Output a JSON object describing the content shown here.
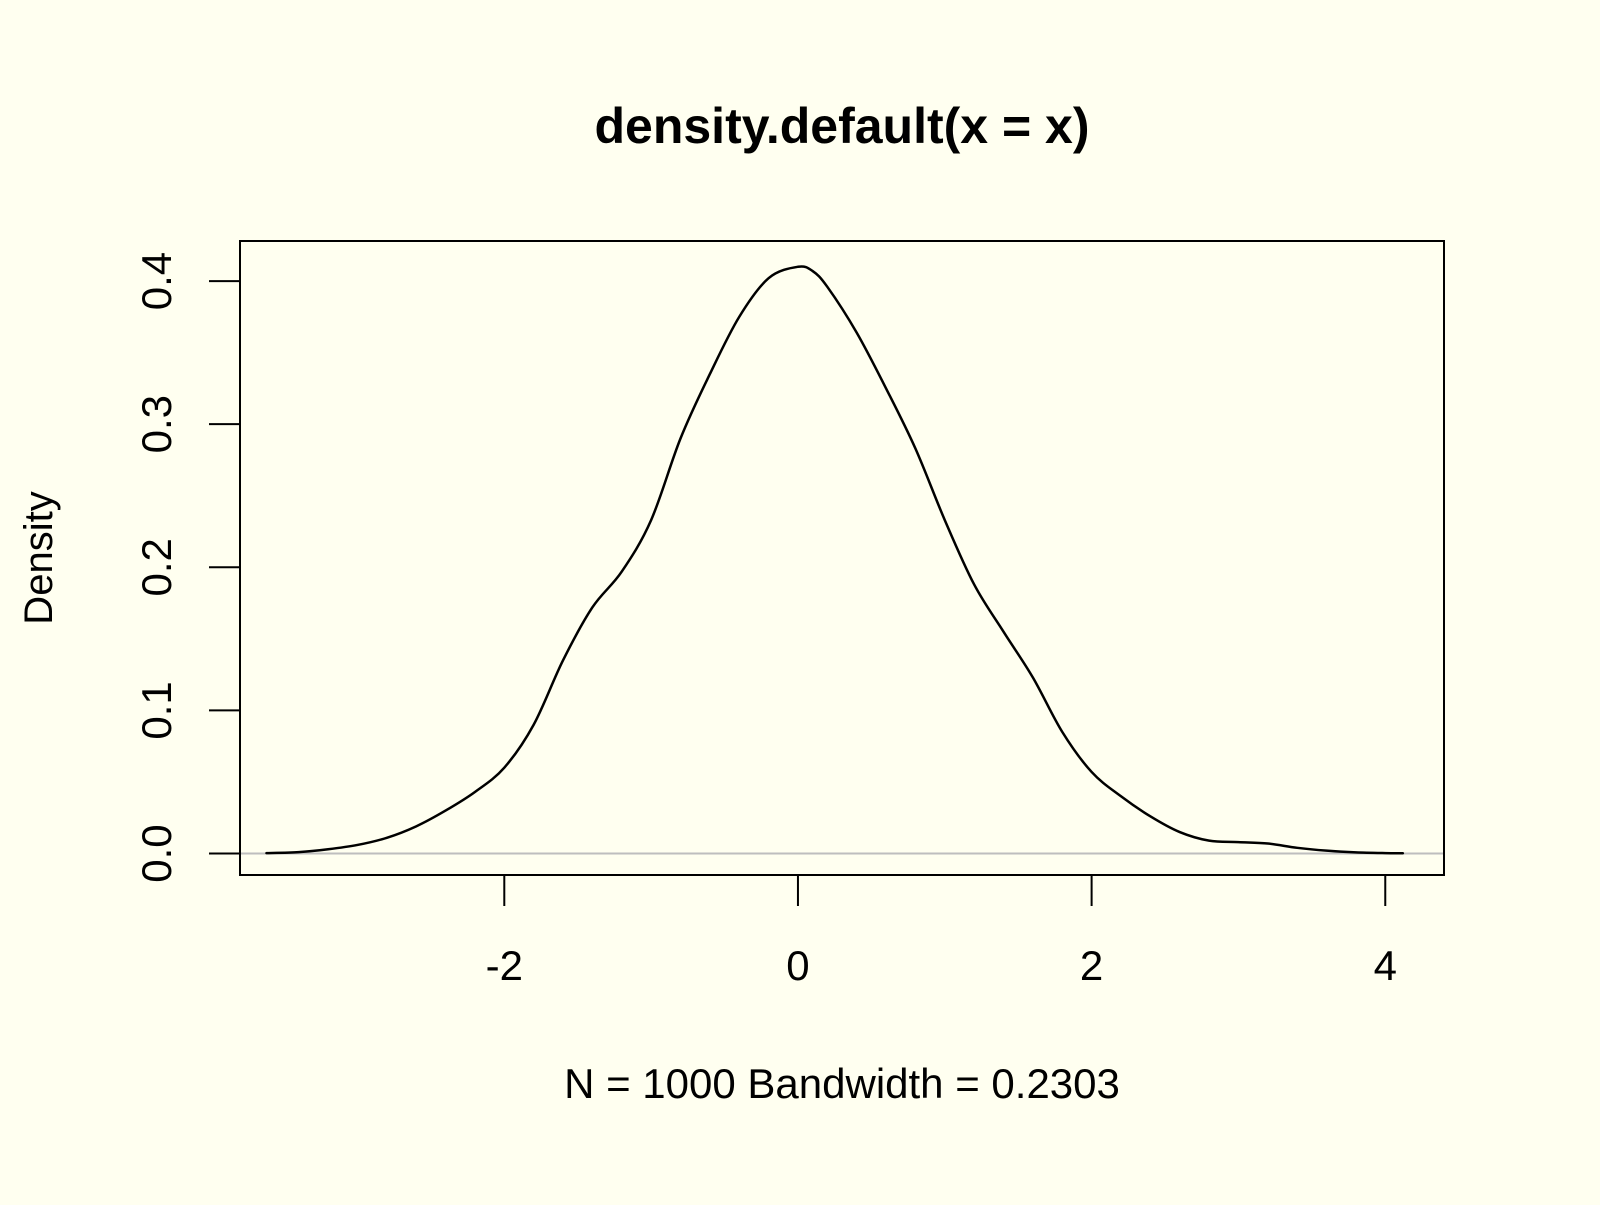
{
  "chart_data": {
    "type": "line",
    "title": "density.default(x = x)",
    "xlabel": "N = 1000   Bandwidth = 0.2303",
    "ylabel": "Density",
    "xlim": [
      -3.8,
      4.4
    ],
    "ylim": [
      -0.015,
      0.428
    ],
    "xticks": [
      {
        "value": -2,
        "label": "-2"
      },
      {
        "value": 0,
        "label": "0"
      },
      {
        "value": 2,
        "label": "2"
      },
      {
        "value": 4,
        "label": "4"
      }
    ],
    "yticks": [
      {
        "value": 0.0,
        "label": "0.0"
      },
      {
        "value": 0.1,
        "label": "0.1"
      },
      {
        "value": 0.2,
        "label": "0.2"
      },
      {
        "value": 0.3,
        "label": "0.3"
      },
      {
        "value": 0.4,
        "label": "0.4"
      }
    ],
    "grid": false,
    "baseline": {
      "y": 0,
      "color": "#BEBEBE"
    },
    "series": [
      {
        "color": "#000000",
        "x": [
          -3.62,
          -3.4,
          -3.2,
          -3.0,
          -2.8,
          -2.6,
          -2.4,
          -2.2,
          -2.0,
          -1.8,
          -1.6,
          -1.4,
          -1.2,
          -1.0,
          -0.8,
          -0.6,
          -0.4,
          -0.2,
          0.0,
          0.1,
          0.2,
          0.4,
          0.6,
          0.8,
          1.0,
          1.2,
          1.4,
          1.6,
          1.8,
          2.0,
          2.2,
          2.4,
          2.6,
          2.8,
          3.0,
          3.2,
          3.4,
          3.6,
          3.8,
          4.0,
          4.12
        ],
        "y": [
          0.0003,
          0.001,
          0.003,
          0.006,
          0.011,
          0.019,
          0.03,
          0.043,
          0.06,
          0.09,
          0.135,
          0.172,
          0.197,
          0.233,
          0.29,
          0.335,
          0.375,
          0.402,
          0.41,
          0.407,
          0.396,
          0.364,
          0.325,
          0.283,
          0.233,
          0.188,
          0.155,
          0.123,
          0.085,
          0.057,
          0.04,
          0.026,
          0.015,
          0.009,
          0.008,
          0.007,
          0.004,
          0.002,
          0.0008,
          0.0003,
          0.0002
        ]
      }
    ]
  }
}
